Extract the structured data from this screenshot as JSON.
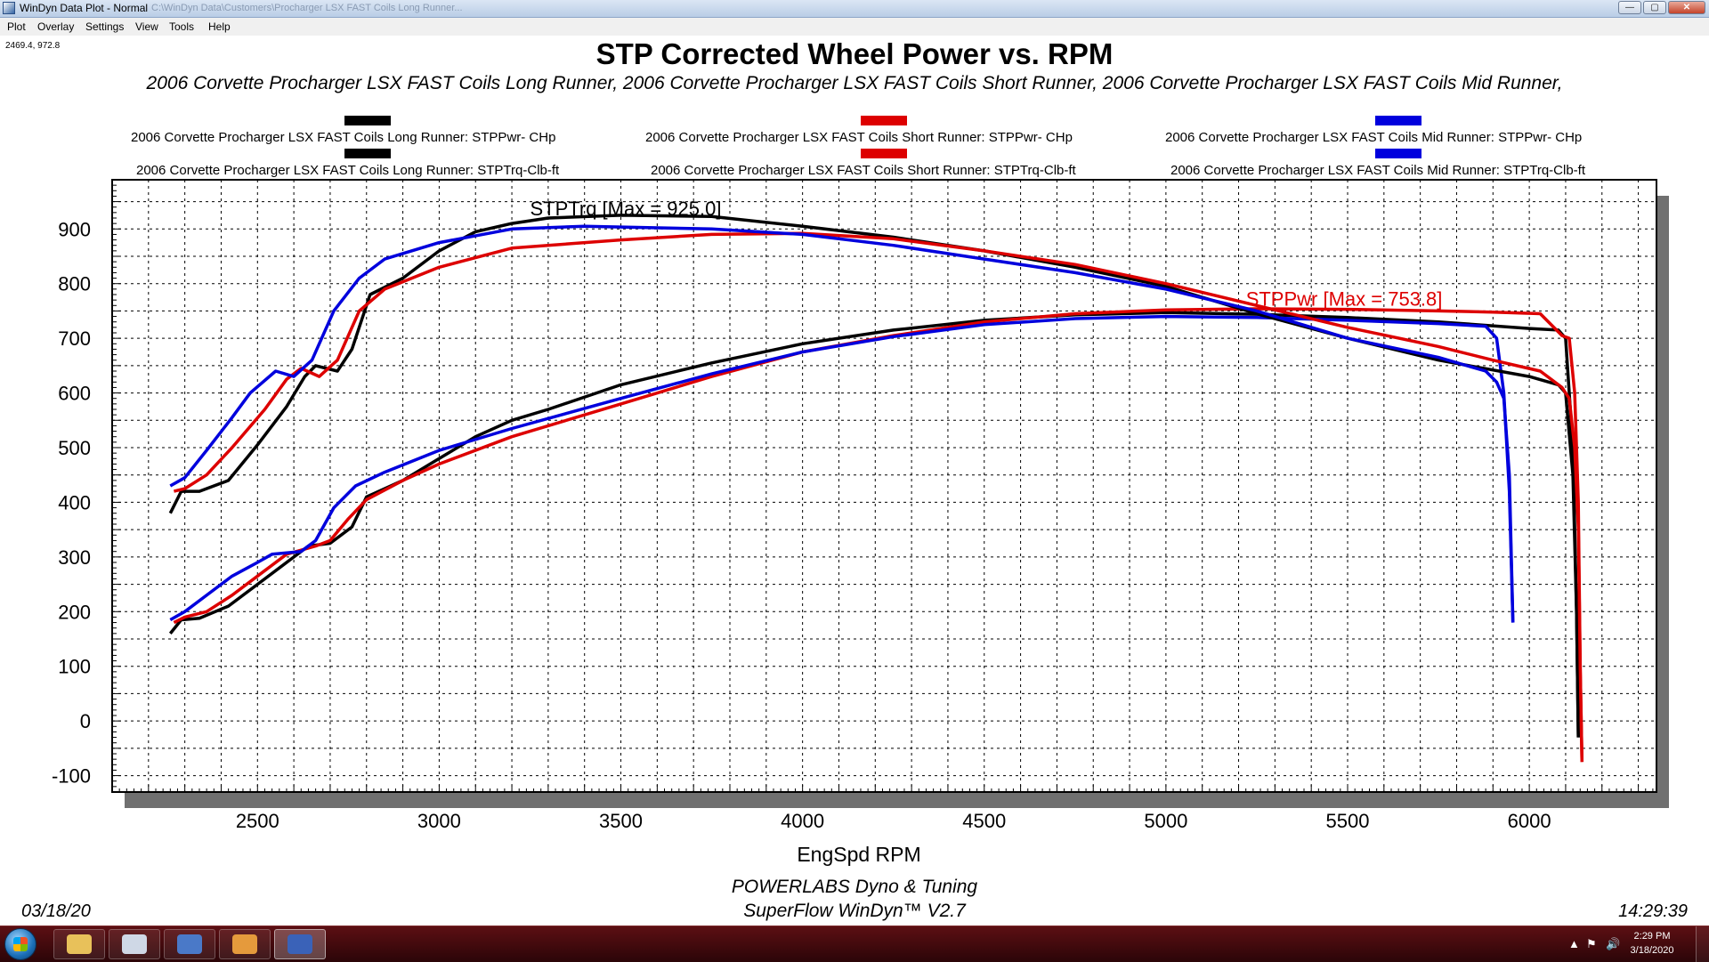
{
  "window": {
    "title": "WinDyn Data Plot - Normal",
    "path_text": "C:\\WinDyn Data\\Customers\\Procharger LSX FAST Coils Long Runner...",
    "controls": {
      "minimize": "—",
      "maximize": "▢",
      "close": "✕"
    }
  },
  "menu": [
    {
      "label": "Plot"
    },
    {
      "label": "Overlay"
    },
    {
      "label": "Settings"
    },
    {
      "label": "View"
    },
    {
      "label": "Tools"
    },
    {
      "label": "Help"
    }
  ],
  "cursor_readout": "2469.4, 972.8",
  "chart_data": {
    "type": "line",
    "title": "STP Corrected Wheel Power vs. RPM",
    "subtitle": "2006 Corvette Procharger LSX FAST Coils Long Runner, 2006 Corvette Procharger LSX FAST Coils Short Runner, 2006 Corvette Procharger LSX FAST Coils Mid Runner,",
    "xlabel": "EngSpd  RPM",
    "ylabel": "",
    "xlim": [
      2100,
      6350
    ],
    "ylim": [
      -130,
      990
    ],
    "x_ticks": [
      2500,
      3000,
      3500,
      4000,
      4500,
      5000,
      5500,
      6000
    ],
    "y_ticks": [
      900,
      800,
      700,
      600,
      500,
      400,
      300,
      200,
      100,
      0,
      -100
    ],
    "x_tick_labels": [
      "2500",
      "3000",
      "3500",
      "4000",
      "4500",
      "5000",
      "5500",
      "6000"
    ],
    "y_tick_labels": [
      "900",
      "800",
      "700",
      "600",
      "500",
      "400",
      "300",
      "200",
      "100",
      "0",
      "-100"
    ],
    "grid": true,
    "legend_position": "top",
    "annotations": [
      {
        "text": "STPTrq [Max = 925.0]",
        "x": 3250,
        "y": 925,
        "color": "#000000"
      },
      {
        "text": "STPPwr [Max = 753.8]",
        "x": 5220,
        "y": 760,
        "color": "#dd0000"
      }
    ],
    "series": [
      {
        "name": "2006 Corvette Procharger LSX FAST Coils Long Runner: STPPwr- CHp",
        "color": "#000000",
        "points": [
          [
            2260,
            160
          ],
          [
            2290,
            185
          ],
          [
            2340,
            188
          ],
          [
            2420,
            210
          ],
          [
            2500,
            250
          ],
          [
            2580,
            290
          ],
          [
            2640,
            320
          ],
          [
            2700,
            325
          ],
          [
            2760,
            355
          ],
          [
            2800,
            410
          ],
          [
            2900,
            440
          ],
          [
            3000,
            480
          ],
          [
            3100,
            520
          ],
          [
            3200,
            550
          ],
          [
            3300,
            570
          ],
          [
            3500,
            615
          ],
          [
            3750,
            655
          ],
          [
            4000,
            690
          ],
          [
            4250,
            715
          ],
          [
            4500,
            733
          ],
          [
            4750,
            743
          ],
          [
            5000,
            747
          ],
          [
            5250,
            744
          ],
          [
            5500,
            738
          ],
          [
            5750,
            730
          ],
          [
            6000,
            718
          ],
          [
            6080,
            715
          ],
          [
            6100,
            700
          ],
          [
            6120,
            500
          ],
          [
            6130,
            200
          ],
          [
            6135,
            -30
          ]
        ]
      },
      {
        "name": "2006 Corvette Procharger LSX FAST Coils Short Runner: STPPwr- CHp",
        "color": "#dd0000",
        "points": [
          [
            2270,
            180
          ],
          [
            2300,
            190
          ],
          [
            2360,
            200
          ],
          [
            2430,
            230
          ],
          [
            2520,
            275
          ],
          [
            2580,
            305
          ],
          [
            2660,
            320
          ],
          [
            2700,
            330
          ],
          [
            2750,
            370
          ],
          [
            2800,
            405
          ],
          [
            2900,
            440
          ],
          [
            3000,
            470
          ],
          [
            3200,
            520
          ],
          [
            3500,
            580
          ],
          [
            3750,
            630
          ],
          [
            4000,
            675
          ],
          [
            4250,
            705
          ],
          [
            4500,
            730
          ],
          [
            4750,
            745
          ],
          [
            5000,
            752
          ],
          [
            5250,
            754
          ],
          [
            5500,
            753
          ],
          [
            5750,
            750
          ],
          [
            5900,
            748
          ],
          [
            6030,
            745
          ],
          [
            6090,
            705
          ],
          [
            6110,
            700
          ],
          [
            6125,
            600
          ],
          [
            6135,
            400
          ],
          [
            6140,
            100
          ],
          [
            6145,
            -75
          ]
        ]
      },
      {
        "name": "2006 Corvette Procharger LSX FAST Coils Mid Runner: STPPwr- CHp",
        "color": "#0000dd",
        "points": [
          [
            2260,
            185
          ],
          [
            2300,
            200
          ],
          [
            2360,
            230
          ],
          [
            2430,
            265
          ],
          [
            2500,
            290
          ],
          [
            2540,
            305
          ],
          [
            2620,
            310
          ],
          [
            2660,
            330
          ],
          [
            2710,
            390
          ],
          [
            2770,
            430
          ],
          [
            2850,
            455
          ],
          [
            3000,
            495
          ],
          [
            3200,
            535
          ],
          [
            3500,
            590
          ],
          [
            3750,
            635
          ],
          [
            4000,
            675
          ],
          [
            4250,
            703
          ],
          [
            4500,
            725
          ],
          [
            4750,
            736
          ],
          [
            5000,
            740
          ],
          [
            5250,
            738
          ],
          [
            5500,
            733
          ],
          [
            5750,
            727
          ],
          [
            5880,
            722
          ],
          [
            5910,
            700
          ],
          [
            5930,
            600
          ],
          [
            5945,
            420
          ],
          [
            5955,
            180
          ]
        ]
      },
      {
        "name": "2006 Corvette Procharger LSX FAST Coils Long Runner: STPTrq-Clb-ft",
        "color": "#000000",
        "points": [
          [
            2260,
            380
          ],
          [
            2290,
            420
          ],
          [
            2340,
            420
          ],
          [
            2420,
            440
          ],
          [
            2500,
            505
          ],
          [
            2580,
            575
          ],
          [
            2630,
            630
          ],
          [
            2660,
            650
          ],
          [
            2720,
            640
          ],
          [
            2760,
            680
          ],
          [
            2810,
            780
          ],
          [
            2900,
            810
          ],
          [
            3000,
            860
          ],
          [
            3100,
            895
          ],
          [
            3200,
            910
          ],
          [
            3300,
            920
          ],
          [
            3500,
            925
          ],
          [
            3750,
            923
          ],
          [
            4000,
            905
          ],
          [
            4250,
            885
          ],
          [
            4500,
            860
          ],
          [
            4750,
            830
          ],
          [
            5000,
            795
          ],
          [
            5250,
            745
          ],
          [
            5500,
            700
          ],
          [
            5750,
            660
          ],
          [
            6000,
            630
          ],
          [
            6080,
            615
          ],
          [
            6100,
            600
          ],
          [
            6120,
            450
          ],
          [
            6130,
            200
          ],
          [
            6135,
            -30
          ]
        ]
      },
      {
        "name": "2006 Corvette Procharger LSX FAST Coils Short Runner: STPTrq-Clb-ft",
        "color": "#dd0000",
        "points": [
          [
            2270,
            420
          ],
          [
            2300,
            425
          ],
          [
            2360,
            450
          ],
          [
            2430,
            500
          ],
          [
            2520,
            570
          ],
          [
            2580,
            625
          ],
          [
            2620,
            645
          ],
          [
            2670,
            630
          ],
          [
            2720,
            660
          ],
          [
            2780,
            750
          ],
          [
            2850,
            790
          ],
          [
            3000,
            830
          ],
          [
            3200,
            865
          ],
          [
            3500,
            880
          ],
          [
            3750,
            890
          ],
          [
            4000,
            892
          ],
          [
            4250,
            882
          ],
          [
            4500,
            860
          ],
          [
            4750,
            835
          ],
          [
            5000,
            800
          ],
          [
            5250,
            760
          ],
          [
            5500,
            720
          ],
          [
            5750,
            685
          ],
          [
            5900,
            660
          ],
          [
            6030,
            640
          ],
          [
            6090,
            610
          ],
          [
            6110,
            590
          ],
          [
            6125,
            500
          ],
          [
            6135,
            350
          ],
          [
            6140,
            100
          ],
          [
            6145,
            -75
          ]
        ]
      },
      {
        "name": "2006 Corvette Procharger LSX FAST Coils Mid Runner: STPTrq-Clb-ft",
        "color": "#0000dd",
        "points": [
          [
            2260,
            430
          ],
          [
            2300,
            445
          ],
          [
            2360,
            495
          ],
          [
            2430,
            555
          ],
          [
            2480,
            600
          ],
          [
            2550,
            640
          ],
          [
            2600,
            630
          ],
          [
            2650,
            660
          ],
          [
            2710,
            750
          ],
          [
            2780,
            810
          ],
          [
            2850,
            845
          ],
          [
            3000,
            875
          ],
          [
            3200,
            900
          ],
          [
            3400,
            905
          ],
          [
            3750,
            900
          ],
          [
            4000,
            890
          ],
          [
            4250,
            870
          ],
          [
            4500,
            845
          ],
          [
            4750,
            820
          ],
          [
            5000,
            790
          ],
          [
            5250,
            750
          ],
          [
            5500,
            700
          ],
          [
            5750,
            665
          ],
          [
            5880,
            640
          ],
          [
            5910,
            620
          ],
          [
            5930,
            590
          ],
          [
            5945,
            450
          ],
          [
            5955,
            180
          ]
        ]
      }
    ]
  },
  "legend_items": [
    "2006 Corvette Procharger LSX FAST Coils Long Runner: STPPwr- CHp",
    "2006 Corvette Procharger LSX FAST Coils Short Runner: STPPwr- CHp",
    "2006 Corvette Procharger LSX FAST Coils Mid Runner: STPPwr- CHp",
    "2006 Corvette Procharger LSX FAST Coils Long Runner: STPTrq-Clb-ft",
    "2006 Corvette Procharger LSX FAST Coils Short Runner: STPTrq-Clb-ft",
    "2006 Corvette Procharger LSX FAST Coils Mid Runner: STPTrq-Clb-ft"
  ],
  "footer": {
    "date": "03/18/20",
    "line1": "POWERLABS Dyno & Tuning",
    "line2": "SuperFlow WinDyn™ V2.7",
    "time": "14:29:39"
  },
  "taskbar": {
    "buttons": [
      {
        "icon": "folder-icon",
        "color": "#e8c15a"
      },
      {
        "icon": "network-icon",
        "color": "#cfd8e6"
      },
      {
        "icon": "windyn-icon",
        "color": "#4a79c8"
      },
      {
        "icon": "paint-icon",
        "color": "#e59a3c"
      },
      {
        "icon": "dataplot-icon",
        "color": "#3a62b8"
      }
    ],
    "tray_time": "2:29 PM",
    "tray_date": "3/18/2020",
    "tray_icons": [
      "▲",
      "⚑",
      "🔊"
    ]
  }
}
